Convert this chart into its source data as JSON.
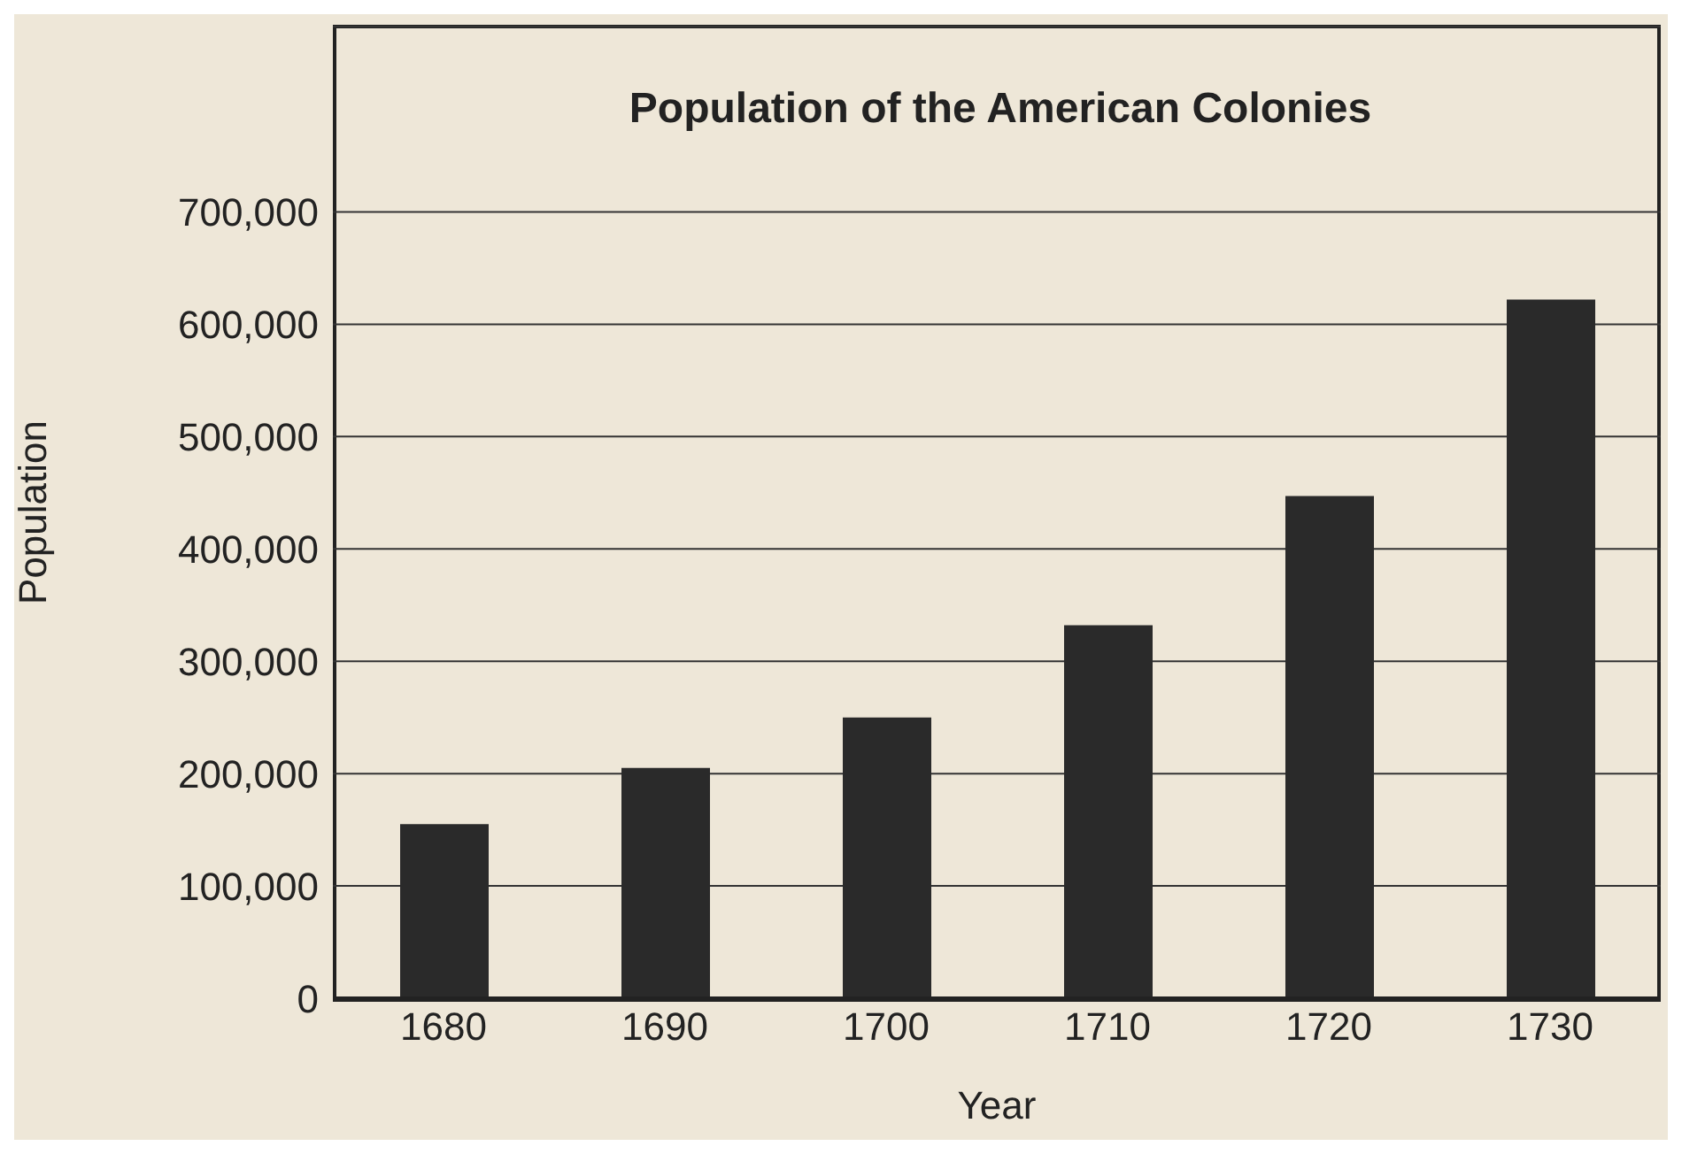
{
  "chart_data": {
    "type": "bar",
    "title": "Population of the American Colonies",
    "xlabel": "Year",
    "ylabel": "Population",
    "categories": [
      "1680",
      "1690",
      "1700",
      "1710",
      "1720",
      "1730"
    ],
    "values": [
      155000,
      205000,
      250000,
      332000,
      447000,
      622000
    ],
    "color": "#2a2a2a",
    "ylim": [
      0,
      865000
    ],
    "yticks": [
      {
        "value": 0,
        "label": "0"
      },
      {
        "value": 100000,
        "label": "100,000"
      },
      {
        "value": 200000,
        "label": "200,000"
      },
      {
        "value": 300000,
        "label": "300,000"
      },
      {
        "value": 400000,
        "label": "400,000"
      },
      {
        "value": 500000,
        "label": "500,000"
      },
      {
        "value": 600000,
        "label": "600,000"
      },
      {
        "value": 700000,
        "label": "700,000"
      }
    ],
    "grid": "y"
  }
}
